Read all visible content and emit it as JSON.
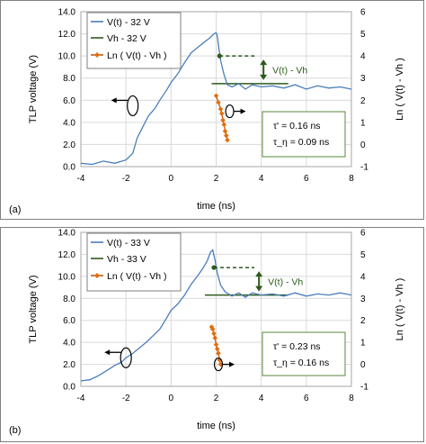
{
  "colors": {
    "voltage": "#4a7ebb",
    "hold": "#2e5a1b",
    "ln": "#c55a11",
    "ln_marker": "#e46c0a",
    "box": "#5a8a3a",
    "frame": "#808080"
  },
  "chart_data": [
    {
      "type": "line",
      "panel_label": "(a)",
      "xlabel": "time (ns)",
      "ylabel": "TLP voltage (V)",
      "ylabel_right": "Ln ( V(t) - Vh )",
      "xlim": [
        -4,
        8
      ],
      "ylim": [
        0,
        14
      ],
      "ylim_right": [
        -1,
        6
      ],
      "x_ticks": [
        "-4",
        "-2",
        "0",
        "2",
        "4",
        "6",
        "8"
      ],
      "y_ticks": [
        "0.0",
        "2.0",
        "4.0",
        "6.0",
        "8.0",
        "10.0",
        "12.0",
        "14.0"
      ],
      "y_ticks_right": [
        "-1",
        "0",
        "1",
        "2",
        "3",
        "4",
        "5",
        "6"
      ],
      "legend": [
        "V(t) - 32 V",
        "Vh - 32 V",
        "Ln ( V(t) - Vh )"
      ],
      "annotation": "V(t) - Vh",
      "tau_prime": "τ' = 0.16 ns",
      "tau_eta": "τ_η = 0.09 ns",
      "series": [
        {
          "name": "V(t) - 32 V",
          "axis": "left",
          "x": [
            -4,
            -3.5,
            -3,
            -2.5,
            -2,
            -1.7,
            -1.5,
            -1.2,
            -1,
            -0.7,
            -0.5,
            -0.2,
            0,
            0.3,
            0.6,
            0.9,
            1.2,
            1.5,
            1.7,
            1.9,
            2.0,
            2.05,
            2.1,
            2.2,
            2.35,
            2.5,
            2.7,
            3.0,
            3.3,
            3.6,
            4,
            4.5,
            5,
            5.5,
            6,
            6.5,
            7,
            7.5,
            8
          ],
          "y": [
            0.3,
            0.2,
            0.5,
            0.3,
            0.6,
            1.2,
            2.6,
            3.8,
            4.6,
            5.3,
            6.0,
            6.9,
            7.6,
            8.4,
            9.4,
            10.3,
            10.8,
            11.3,
            11.6,
            12.0,
            12.1,
            11.8,
            11.0,
            9.6,
            8.3,
            7.4,
            7.2,
            7.5,
            7.0,
            7.4,
            7.2,
            7.3,
            7.1,
            7.4,
            7.0,
            7.3,
            7.1,
            7.2,
            7.0
          ]
        },
        {
          "name": "Vh - 32 V",
          "axis": "left",
          "x": [
            1.8,
            5.2
          ],
          "y": [
            7.5,
            7.5
          ]
        },
        {
          "name": "Ln ( V(t) - Vh )",
          "axis": "right",
          "x": [
            2.0,
            2.1,
            2.2,
            2.25,
            2.3,
            2.35,
            2.4,
            2.45,
            2.5
          ],
          "y": [
            2.2,
            1.9,
            1.6,
            1.4,
            1.1,
            0.9,
            0.6,
            0.4,
            0.2
          ]
        }
      ],
      "hold_dash": {
        "x": [
          2.15,
          3.8
        ],
        "y": [
          10.0,
          10.0
        ]
      },
      "arrow_x": 4.1,
      "circle_left": {
        "x": -1.7,
        "y": 5.5
      },
      "circle_right": {
        "x": 2.6,
        "y": 1.5
      }
    },
    {
      "type": "line",
      "panel_label": "(b)",
      "xlabel": "time (ns)",
      "ylabel": "TLP voltage (V)",
      "ylabel_right": "Ln ( V(t) - Vh )",
      "xlim": [
        -4,
        8
      ],
      "ylim": [
        0,
        14
      ],
      "ylim_right": [
        -1,
        6
      ],
      "x_ticks": [
        "-4",
        "-2",
        "0",
        "2",
        "4",
        "6",
        "8"
      ],
      "y_ticks": [
        "0.0",
        "2.0",
        "4.0",
        "6.0",
        "8.0",
        "10.0",
        "12.0",
        "14.0"
      ],
      "y_ticks_right": [
        "-1",
        "0",
        "1",
        "2",
        "3",
        "4",
        "5",
        "6"
      ],
      "legend": [
        "V(t) - 33 V",
        "Vh - 33 V",
        "Ln ( V(t) - Vh )"
      ],
      "annotation": "V(t) - Vh",
      "tau_prime": "τ' = 0.23 ns",
      "tau_eta": "τ_η = 0.16 ns",
      "series": [
        {
          "name": "V(t) - 33 V",
          "axis": "left",
          "x": [
            -4,
            -3.6,
            -3.2,
            -2.8,
            -2.5,
            -2.2,
            -2,
            -1.7,
            -1.4,
            -1.1,
            -0.8,
            -0.5,
            -0.2,
            0,
            0.3,
            0.6,
            0.9,
            1.2,
            1.4,
            1.6,
            1.75,
            1.85,
            1.95,
            2.05,
            2.2,
            2.4,
            2.7,
            3.0,
            3.3,
            3.6,
            4,
            4.5,
            5,
            5.5,
            6,
            6.5,
            7,
            7.5,
            8
          ],
          "y": [
            0.5,
            0.6,
            1.0,
            1.5,
            1.9,
            2.2,
            2.6,
            3.0,
            3.5,
            4.0,
            4.6,
            5.2,
            6.2,
            6.9,
            7.5,
            8.3,
            9.3,
            10.1,
            10.7,
            11.4,
            12.2,
            12.4,
            11.5,
            10.3,
            9.2,
            8.6,
            8.2,
            8.5,
            8.1,
            8.5,
            8.3,
            8.4,
            8.2,
            8.5,
            8.2,
            8.4,
            8.3,
            8.5,
            8.3
          ]
        },
        {
          "name": "Vh - 33 V",
          "axis": "left",
          "x": [
            1.5,
            5.2
          ],
          "y": [
            8.3,
            8.3
          ]
        },
        {
          "name": "Ln ( V(t) - Vh )",
          "axis": "right",
          "x": [
            1.8,
            1.85,
            1.9,
            1.95,
            2.0,
            2.05,
            2.1,
            2.15,
            2.2
          ],
          "y": [
            1.7,
            1.6,
            1.4,
            1.2,
            0.9,
            0.7,
            0.5,
            0.2,
            0.0
          ]
        }
      ],
      "hold_dash": {
        "x": [
          1.9,
          3.7
        ],
        "y": [
          10.8,
          10.8
        ]
      },
      "arrow_x": 3.9,
      "circle_left": {
        "x": -2.0,
        "y": 2.6
      },
      "circle_right": {
        "x": 2.1,
        "y": 0.0
      }
    }
  ]
}
